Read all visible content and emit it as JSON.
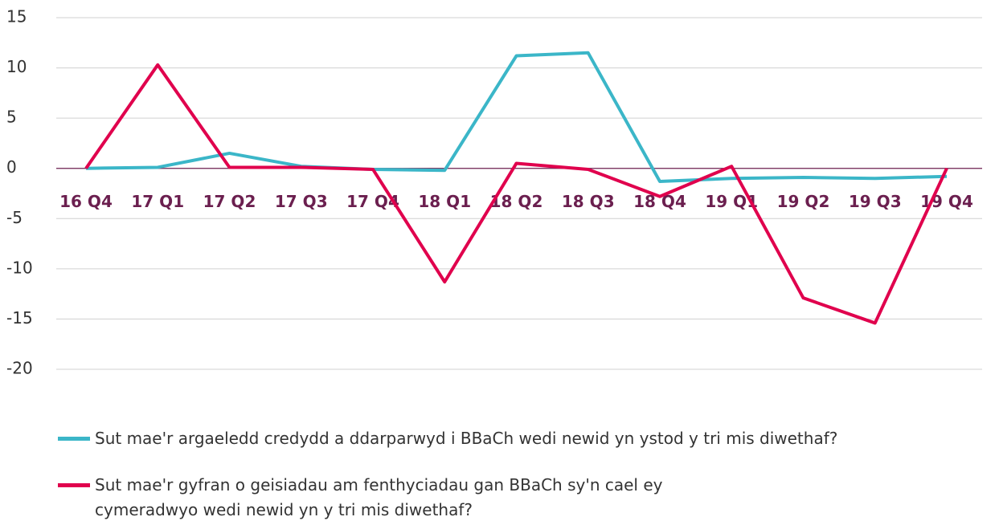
{
  "chart_data": {
    "type": "line",
    "categories": [
      "16 Q4",
      "17 Q1",
      "17 Q2",
      "17 Q3",
      "17 Q4",
      "18 Q1",
      "18 Q2",
      "18 Q3",
      "18 Q4",
      "19 Q1",
      "19 Q2",
      "19 Q3",
      "19 Q4"
    ],
    "series": [
      {
        "name": "Sut mae'r argaeledd credydd a ddarparwyd i BBaCh wedi newid yn ystod y tri mis diwethaf?",
        "color": "#3bb6c8",
        "values": [
          0,
          0.1,
          1.5,
          0.2,
          -0.1,
          -0.2,
          11.2,
          11.5,
          -1.3,
          -1,
          -0.9,
          -1,
          -0.8
        ]
      },
      {
        "name": "Sut mae'r gyfran o geisiadau am fenthyciadau gan BBaCh sy'n cael ey cymeradwyo wedi newid yn y tri mis diwethaf?",
        "color": "#e0004d",
        "values": [
          0,
          10.3,
          0.1,
          0.1,
          -0.1,
          -11.3,
          0.5,
          -0.1,
          -2.8,
          0.2,
          -12.9,
          -15.4,
          0
        ]
      }
    ],
    "ylim": [
      -20,
      15
    ],
    "yticks": [
      -20,
      -15,
      -10,
      -5,
      0,
      5,
      10,
      15
    ],
    "grid": true
  }
}
